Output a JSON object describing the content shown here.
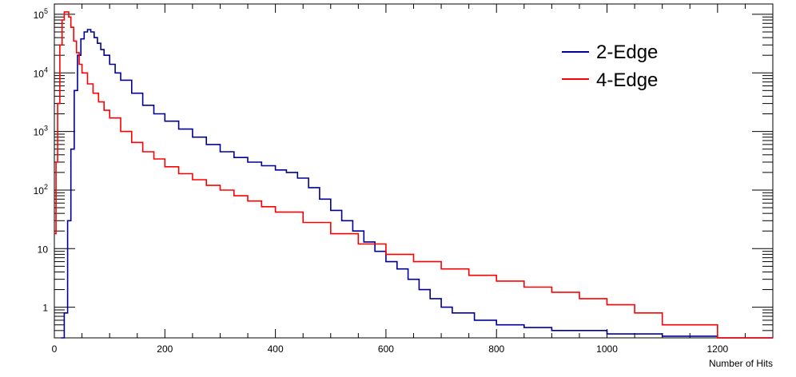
{
  "chart_data": {
    "type": "line",
    "title": "",
    "xlabel": "Number of Hits",
    "ylabel": "",
    "xlim": [
      0,
      1300
    ],
    "ylim": [
      0.3,
      150000
    ],
    "y_scale": "log",
    "grid": false,
    "legend_position": "top-right",
    "x_ticks": [
      0,
      200,
      400,
      600,
      800,
      1000,
      1200
    ],
    "x_tick_labels": [
      "0",
      "200",
      "400",
      "600",
      "800",
      "1000",
      "1200"
    ],
    "y_ticks": [
      1,
      10,
      100,
      1000,
      10000,
      100000
    ],
    "y_tick_labels": [
      {
        "base": "1",
        "exp": ""
      },
      {
        "base": "10",
        "exp": ""
      },
      {
        "base": "10",
        "exp": "2"
      },
      {
        "base": "10",
        "exp": "3"
      },
      {
        "base": "10",
        "exp": "4"
      },
      {
        "base": "10",
        "exp": "5"
      }
    ],
    "series": [
      {
        "name": "2-Edge",
        "color": "#000099",
        "x": [
          12,
          18,
          24,
          30,
          36,
          42,
          48,
          54,
          60,
          66,
          72,
          78,
          84,
          90,
          100,
          110,
          120,
          140,
          160,
          180,
          200,
          225,
          250,
          275,
          300,
          325,
          350,
          375,
          400,
          420,
          440,
          460,
          480,
          500,
          520,
          540,
          560,
          580,
          600,
          620,
          640,
          660,
          680,
          700,
          720,
          760,
          800,
          850,
          900,
          950,
          1000,
          1050,
          1100,
          1150,
          1200,
          1300
        ],
        "y": [
          0.3,
          0.8,
          30,
          500,
          5000,
          20000,
          38000,
          50000,
          55000,
          50000,
          40000,
          32000,
          25000,
          20000,
          14000,
          10000,
          7500,
          4500,
          2800,
          2000,
          1500,
          1100,
          800,
          600,
          450,
          360,
          300,
          260,
          220,
          200,
          160,
          110,
          70,
          45,
          30,
          20,
          13,
          9,
          6,
          4.5,
          3,
          2,
          1.4,
          1,
          0.8,
          0.6,
          0.5,
          0.45,
          0.4,
          0.4,
          0.35,
          0.35,
          0.32,
          0.32,
          0.3,
          0.3
        ]
      },
      {
        "name": "4-Edge",
        "color": "#ff0000",
        "x": [
          0,
          3,
          6,
          10,
          14,
          18,
          22,
          26,
          30,
          35,
          40,
          45,
          50,
          60,
          70,
          80,
          90,
          100,
          120,
          140,
          160,
          180,
          200,
          225,
          250,
          275,
          300,
          325,
          350,
          375,
          400,
          450,
          500,
          550,
          600,
          650,
          700,
          750,
          800,
          850,
          900,
          950,
          1000,
          1050,
          1100,
          1200,
          1300
        ],
        "y": [
          18,
          300,
          3000,
          30000,
          80000,
          110000,
          110000,
          90000,
          60000,
          35000,
          22000,
          14000,
          10000,
          6500,
          4500,
          3200,
          2300,
          1700,
          1000,
          650,
          450,
          340,
          250,
          190,
          150,
          120,
          100,
          80,
          65,
          52,
          42,
          28,
          18,
          12,
          8,
          6,
          4.5,
          3.5,
          2.8,
          2.2,
          1.8,
          1.4,
          1.1,
          0.8,
          0.5,
          0.3,
          0.3
        ]
      }
    ]
  }
}
